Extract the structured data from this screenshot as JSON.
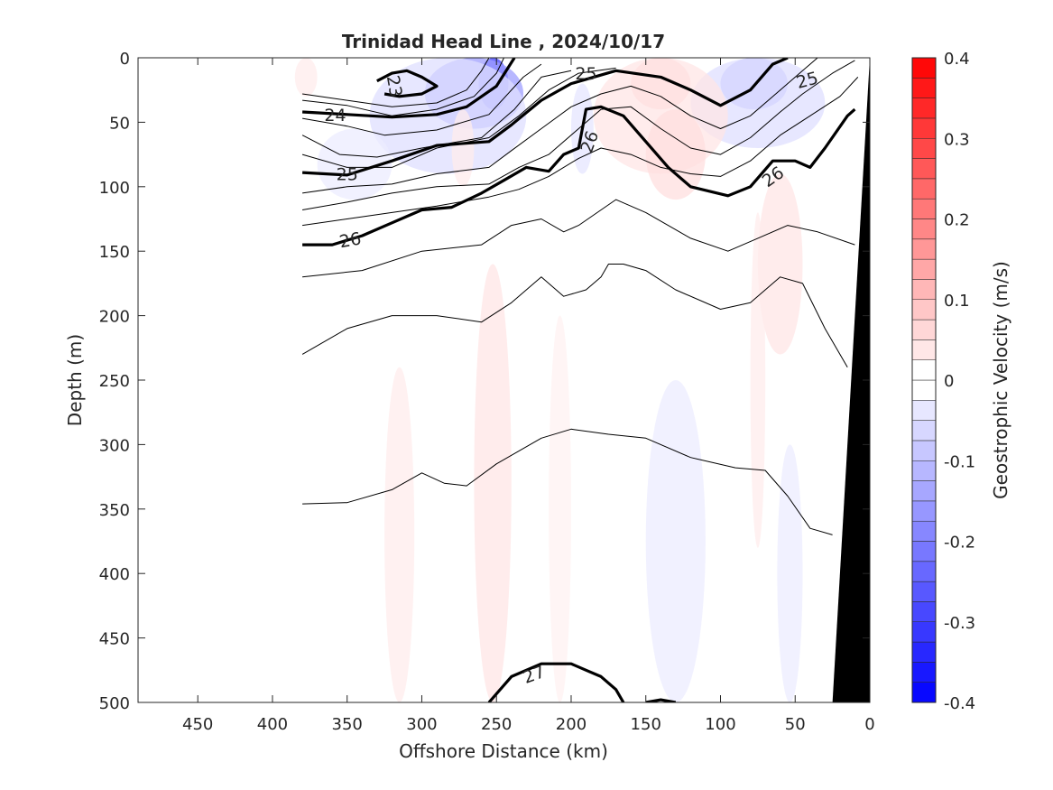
{
  "chart_data": {
    "type": "heatmap",
    "title": "Trinidad Head Line , 2024/10/17",
    "xlabel": "Offshore Distance (km)",
    "ylabel": "Depth (m)",
    "xlim": [
      490,
      0
    ],
    "ylim": [
      0,
      500
    ],
    "x_reversed": true,
    "y_reversed": true,
    "x_ticks": [
      450,
      400,
      350,
      300,
      250,
      200,
      150,
      100,
      50,
      0
    ],
    "y_ticks": [
      0,
      50,
      100,
      150,
      200,
      250,
      300,
      350,
      400,
      450,
      500
    ],
    "colorbar": {
      "label": "Geostrophic Velocity (m/s)",
      "colormap": "blue-white-red",
      "min_color": "#0000ff",
      "max_color": "#ff0000",
      "limits": [
        -0.4,
        0.4
      ],
      "step": 0.025,
      "ticks": [
        -0.4,
        -0.3,
        -0.2,
        -0.1,
        0,
        0.1,
        0.2,
        0.3,
        0.4
      ],
      "tick_labels": [
        "-0.4",
        "-0.3",
        "-0.2",
        "-0.1",
        "0",
        "0.1",
        "0.2",
        "0.3",
        "0.4"
      ]
    },
    "velocity_patches": [
      {
        "dist": [
          262,
          242
        ],
        "depth": [
          0,
          40
        ],
        "value": -0.3
      },
      {
        "dist": [
          298,
          232
        ],
        "depth": [
          0,
          55
        ],
        "value": -0.15
      },
      {
        "dist": [
          335,
          230
        ],
        "depth": [
          0,
          90
        ],
        "value": -0.05
      },
      {
        "dist": [
          370,
          320
        ],
        "depth": [
          55,
          110
        ],
        "value": -0.03
      },
      {
        "dist": [
          200,
          185
        ],
        "depth": [
          20,
          90
        ],
        "value": -0.04
      },
      {
        "dist": [
          100,
          55
        ],
        "depth": [
          0,
          40
        ],
        "value": -0.12
      },
      {
        "dist": [
          120,
          30
        ],
        "depth": [
          0,
          70
        ],
        "value": -0.05
      },
      {
        "dist": [
          160,
          120
        ],
        "depth": [
          0,
          40
        ],
        "value": 0.08
      },
      {
        "dist": [
          185,
          95
        ],
        "depth": [
          0,
          90
        ],
        "value": 0.04
      },
      {
        "dist": [
          150,
          110
        ],
        "depth": [
          40,
          110
        ],
        "value": 0.05
      },
      {
        "dist": [
          385,
          370
        ],
        "depth": [
          0,
          30
        ],
        "value": 0.03
      },
      {
        "dist": [
          280,
          265
        ],
        "depth": [
          40,
          100
        ],
        "value": 0.03
      },
      {
        "dist": [
          75,
          45
        ],
        "depth": [
          90,
          230
        ],
        "value": 0.04
      },
      {
        "dist": [
          265,
          240
        ],
        "depth": [
          160,
          500
        ],
        "value": 0.04
      },
      {
        "dist": [
          325,
          305
        ],
        "depth": [
          240,
          500
        ],
        "value": 0.03
      },
      {
        "dist": [
          215,
          200
        ],
        "depth": [
          200,
          500
        ],
        "value": 0.02
      },
      {
        "dist": [
          150,
          110
        ],
        "depth": [
          250,
          500
        ],
        "value": -0.03
      },
      {
        "dist": [
          62,
          45
        ],
        "depth": [
          300,
          500
        ],
        "value": -0.03
      },
      {
        "dist": [
          80,
          70
        ],
        "depth": [
          120,
          380
        ],
        "value": 0.03
      }
    ],
    "contours": [
      {
        "level": 23,
        "major": true,
        "points": [
          [
            325,
            28
          ],
          [
            315,
            30
          ],
          [
            300,
            28
          ],
          [
            290,
            22
          ],
          [
            300,
            15
          ],
          [
            310,
            10
          ],
          [
            320,
            12
          ],
          [
            330,
            18
          ]
        ]
      },
      {
        "level": 23.5,
        "major": false,
        "points": [
          [
            380,
            28
          ],
          [
            350,
            33
          ],
          [
            320,
            38
          ],
          [
            290,
            35
          ],
          [
            270,
            25
          ],
          [
            260,
            10
          ],
          [
            255,
            0
          ]
        ]
      },
      {
        "level": 23.75,
        "major": false,
        "points": [
          [
            380,
            33
          ],
          [
            350,
            37
          ],
          [
            320,
            45
          ],
          [
            290,
            40
          ],
          [
            265,
            30
          ],
          [
            250,
            12
          ],
          [
            245,
            0
          ]
        ]
      },
      {
        "level": 24,
        "major": true,
        "points": [
          [
            380,
            42
          ],
          [
            350,
            44
          ],
          [
            320,
            46
          ],
          [
            290,
            44
          ],
          [
            270,
            38
          ],
          [
            250,
            22
          ],
          [
            238,
            0
          ]
        ]
      },
      {
        "level": 24.25,
        "major": false,
        "points": [
          [
            380,
            47
          ],
          [
            350,
            53
          ],
          [
            325,
            60
          ],
          [
            290,
            56
          ],
          [
            255,
            44
          ],
          [
            232,
            15
          ],
          [
            220,
            5
          ]
        ]
      },
      {
        "level": 24.5,
        "major": false,
        "points": [
          [
            380,
            60
          ],
          [
            355,
            75
          ],
          [
            330,
            77
          ],
          [
            300,
            70
          ],
          [
            260,
            62
          ],
          [
            238,
            40
          ],
          [
            220,
            15
          ],
          [
            200,
            10
          ]
        ]
      },
      {
        "level": 24.75,
        "major": false,
        "points": [
          [
            380,
            75
          ],
          [
            350,
            85
          ],
          [
            320,
            85
          ],
          [
            290,
            70
          ],
          [
            255,
            62
          ],
          [
            235,
            45
          ],
          [
            215,
            25
          ],
          [
            195,
            12
          ],
          [
            170,
            8
          ]
        ]
      },
      {
        "level": 25,
        "major": true,
        "points": [
          [
            380,
            89
          ],
          [
            350,
            91
          ],
          [
            320,
            80
          ],
          [
            290,
            68
          ],
          [
            255,
            65
          ],
          [
            240,
            52
          ],
          [
            220,
            33
          ],
          [
            200,
            20
          ],
          [
            170,
            10
          ],
          [
            140,
            15
          ],
          [
            120,
            25
          ],
          [
            100,
            37
          ],
          [
            80,
            25
          ],
          [
            65,
            5
          ],
          [
            55,
            0
          ]
        ]
      },
      {
        "level": 25.25,
        "major": false,
        "points": [
          [
            380,
            105
          ],
          [
            350,
            100
          ],
          [
            320,
            98
          ],
          [
            290,
            90
          ],
          [
            255,
            85
          ],
          [
            240,
            72
          ],
          [
            220,
            55
          ],
          [
            200,
            38
          ],
          [
            180,
            28
          ],
          [
            160,
            22
          ],
          [
            140,
            30
          ],
          [
            120,
            45
          ],
          [
            100,
            55
          ],
          [
            80,
            45
          ],
          [
            60,
            25
          ],
          [
            45,
            10
          ],
          [
            35,
            0
          ]
        ]
      },
      {
        "level": 25.5,
        "major": false,
        "points": [
          [
            380,
            118
          ],
          [
            350,
            112
          ],
          [
            320,
            105
          ],
          [
            290,
            100
          ],
          [
            255,
            98
          ],
          [
            235,
            85
          ],
          [
            215,
            75
          ],
          [
            195,
            55
          ],
          [
            180,
            40
          ],
          [
            160,
            38
          ],
          [
            140,
            55
          ],
          [
            120,
            70
          ],
          [
            100,
            75
          ],
          [
            80,
            62
          ],
          [
            60,
            42
          ],
          [
            45,
            28
          ],
          [
            25,
            12
          ],
          [
            10,
            2
          ]
        ]
      },
      {
        "level": 25.75,
        "major": false,
        "points": [
          [
            380,
            130
          ],
          [
            350,
            125
          ],
          [
            320,
            120
          ],
          [
            290,
            115
          ],
          [
            255,
            108
          ],
          [
            235,
            102
          ],
          [
            215,
            92
          ],
          [
            195,
            78
          ],
          [
            180,
            70
          ],
          [
            160,
            75
          ],
          [
            140,
            85
          ],
          [
            120,
            90
          ],
          [
            100,
            92
          ],
          [
            80,
            80
          ],
          [
            60,
            60
          ],
          [
            40,
            45
          ],
          [
            20,
            30
          ],
          [
            8,
            15
          ]
        ]
      },
      {
        "level": 26,
        "major": true,
        "points": [
          [
            380,
            145
          ],
          [
            360,
            145
          ],
          [
            340,
            138
          ],
          [
            320,
            128
          ],
          [
            300,
            118
          ],
          [
            280,
            116
          ],
          [
            260,
            105
          ],
          [
            245,
            95
          ],
          [
            230,
            85
          ],
          [
            215,
            88
          ],
          [
            205,
            75
          ],
          [
            195,
            70
          ],
          [
            190,
            40
          ],
          [
            180,
            38
          ],
          [
            165,
            45
          ],
          [
            150,
            65
          ],
          [
            135,
            85
          ],
          [
            120,
            100
          ],
          [
            95,
            107
          ],
          [
            80,
            100
          ],
          [
            65,
            80
          ],
          [
            50,
            80
          ],
          [
            40,
            85
          ],
          [
            30,
            70
          ],
          [
            15,
            45
          ],
          [
            10,
            40
          ]
        ]
      },
      {
        "level": 26.25,
        "major": false,
        "points": [
          [
            380,
            170
          ],
          [
            340,
            165
          ],
          [
            300,
            150
          ],
          [
            260,
            145
          ],
          [
            240,
            130
          ],
          [
            220,
            125
          ],
          [
            205,
            135
          ],
          [
            195,
            130
          ],
          [
            170,
            110
          ],
          [
            150,
            120
          ],
          [
            120,
            140
          ],
          [
            95,
            150
          ],
          [
            75,
            140
          ],
          [
            55,
            130
          ],
          [
            35,
            135
          ],
          [
            10,
            145
          ]
        ]
      },
      {
        "level": 26.5,
        "major": false,
        "points": [
          [
            380,
            230
          ],
          [
            350,
            210
          ],
          [
            320,
            200
          ],
          [
            290,
            200
          ],
          [
            260,
            205
          ],
          [
            240,
            190
          ],
          [
            220,
            170
          ],
          [
            205,
            185
          ],
          [
            190,
            180
          ],
          [
            180,
            170
          ],
          [
            175,
            160
          ],
          [
            165,
            160
          ],
          [
            150,
            165
          ],
          [
            130,
            180
          ],
          [
            100,
            195
          ],
          [
            80,
            190
          ],
          [
            60,
            170
          ],
          [
            45,
            175
          ],
          [
            30,
            210
          ],
          [
            15,
            240
          ]
        ]
      },
      {
        "level": 26.75,
        "major": false,
        "points": [
          [
            380,
            346
          ],
          [
            350,
            345
          ],
          [
            320,
            335
          ],
          [
            300,
            322
          ],
          [
            285,
            330
          ],
          [
            270,
            332
          ],
          [
            250,
            315
          ],
          [
            220,
            295
          ],
          [
            200,
            288
          ],
          [
            175,
            292
          ],
          [
            150,
            295
          ],
          [
            120,
            310
          ],
          [
            90,
            318
          ],
          [
            70,
            320
          ],
          [
            55,
            340
          ],
          [
            40,
            365
          ],
          [
            25,
            370
          ]
        ]
      },
      {
        "level": 27,
        "major": true,
        "points": [
          [
            255,
            500
          ],
          [
            240,
            480
          ],
          [
            220,
            470
          ],
          [
            200,
            470
          ],
          [
            190,
            475
          ],
          [
            180,
            480
          ],
          [
            170,
            490
          ],
          [
            165,
            500
          ]
        ]
      },
      {
        "level": 27,
        "major": true,
        "points": [
          [
            150,
            500
          ],
          [
            140,
            498
          ],
          [
            130,
            500
          ]
        ]
      }
    ],
    "contour_labels": [
      {
        "text": "23",
        "x": 318,
        "y": 22,
        "rotate": 80
      },
      {
        "text": "24",
        "x": 358,
        "y": 44,
        "rotate": 0
      },
      {
        "text": "25",
        "x": 350,
        "y": 90,
        "rotate": 0
      },
      {
        "text": "26",
        "x": 348,
        "y": 141,
        "rotate": -10
      },
      {
        "text": "25",
        "x": 190,
        "y": 12,
        "rotate": 0
      },
      {
        "text": "26",
        "x": 188,
        "y": 65,
        "rotate": -70
      },
      {
        "text": "25",
        "x": 42,
        "y": 17,
        "rotate": -15
      },
      {
        "text": "26",
        "x": 65,
        "y": 92,
        "rotate": -35
      },
      {
        "text": "27",
        "x": 225,
        "y": 478,
        "rotate": -20
      }
    ],
    "bathymetry_outline": [
      [
        0,
        0
      ],
      [
        25,
        500
      ],
      [
        0,
        500
      ]
    ]
  }
}
